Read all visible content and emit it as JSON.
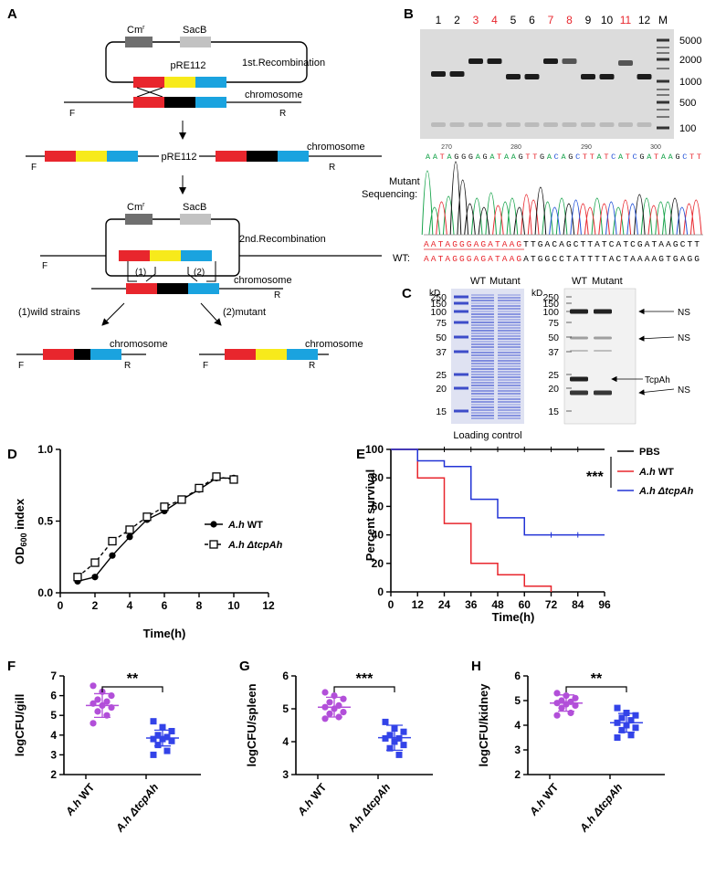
{
  "colors": {
    "red": "#e8262d",
    "yellow": "#f7ea1b",
    "black": "#000000",
    "blue": "#1aa3df",
    "cm_gray": "#6f6f6f",
    "sacb_gray": "#c2c2c2",
    "gel_bg": "#dcdcdc",
    "coomassie": "#5a6bd6",
    "wt_red": "#e8262d",
    "mutant_blue": "#2233d6",
    "gill_purple": "#b24fd9",
    "mutant_square_blue": "#3343e8",
    "seq_green": "#16a34a",
    "seq_red": "#e8262d",
    "seq_blue": "#1d4ed8",
    "seq_black": "#111111"
  },
  "panelA": {
    "letter": "A",
    "cm": "Cm",
    "cm_sup": "r",
    "sacb": "SacB",
    "plasmid": "pRE112",
    "rec1": "1st.Recombination",
    "rec2": "2nd.Recombination",
    "chromosome": "chromosome",
    "F": "F",
    "R": "R",
    "site1": "(1)",
    "site2": "(2)",
    "outcome1": "(1)wild strains",
    "outcome2": "(2)mutant"
  },
  "panelB": {
    "letter": "B",
    "lanes": [
      "1",
      "2",
      "3",
      "4",
      "5",
      "6",
      "7",
      "8",
      "9",
      "10",
      "11",
      "12",
      "M"
    ],
    "highlighted_lanes": [
      "3",
      "4",
      "7",
      "8",
      "11"
    ],
    "ladder": [
      "5000",
      "2000",
      "1000",
      "500",
      "100"
    ],
    "positions": [
      "270",
      "280",
      "290",
      "300"
    ],
    "top_sequence": "AATAGGGAGATAAGTTGACAGCTTATCATCGATAAGCTT",
    "seq_label_1": "Mutant",
    "seq_label_2": "Sequencing:",
    "mutant_red": "AATAGGGAGATAAG",
    "mutant_black": "TTGACAGCTTATCATCGATAAGCTT",
    "wt_label": "WT:",
    "wt_red": "AATAGGGAGATAAG",
    "wt_black": "ATGGCCTATTTTACTAAAAGTGAGG"
  },
  "panelC": {
    "letter": "C",
    "kd": "kD",
    "markers": [
      "250",
      "150",
      "100",
      "75",
      "50",
      "37",
      "25",
      "20",
      "15"
    ],
    "wt": "WT",
    "mutant": "Mutant",
    "loading_control": "Loading control",
    "ns": "NS",
    "tcpah": "TcpAh"
  },
  "panelD": {
    "letter": "D",
    "ylabel_main": "OD",
    "ylabel_sub": "600",
    "ylabel_rest": " index",
    "xlabel": "Time(h)",
    "legend_wt_italic": "A.h",
    "legend_wt_rest": " WT",
    "legend_mut_italic": "A.h",
    "legend_mut_rest": " ΔtcpAh",
    "yticks": [
      "0.0",
      "0.5",
      "1.0"
    ],
    "xticks": [
      "0",
      "2",
      "4",
      "6",
      "8",
      "10",
      "12"
    ]
  },
  "panelE": {
    "letter": "E",
    "ylabel": "Percent survival",
    "xlabel": "Time(h)",
    "yticks": [
      "0",
      "20",
      "40",
      "60",
      "80",
      "100"
    ],
    "xticks": [
      "0",
      "12",
      "24",
      "36",
      "48",
      "60",
      "72",
      "84",
      "96"
    ],
    "legend_pbs": "PBS",
    "legend_wt_italic": "A.h",
    "legend_wt_rest": " WT",
    "legend_mut_italic": "A.h ΔtcpAh",
    "sig": "***"
  },
  "chart_data": [
    {
      "type": "line",
      "panel": "D",
      "ylabel": "OD600 index",
      "xlabel": "Time(h)",
      "xlim": [
        0,
        12
      ],
      "ylim": [
        0,
        1.0
      ],
      "series": [
        {
          "name": "A.h WT",
          "x": [
            1,
            2,
            3,
            4,
            5,
            6,
            7,
            8,
            9,
            10
          ],
          "values": [
            0.08,
            0.11,
            0.26,
            0.39,
            0.51,
            0.57,
            0.65,
            0.72,
            0.8,
            0.8
          ]
        },
        {
          "name": "A.h ΔtcpAh",
          "x": [
            1,
            2,
            3,
            4,
            5,
            6,
            7,
            8,
            9,
            10
          ],
          "values": [
            0.11,
            0.21,
            0.36,
            0.44,
            0.53,
            0.6,
            0.65,
            0.73,
            0.81,
            0.79
          ]
        }
      ]
    },
    {
      "type": "line",
      "panel": "E",
      "ylabel": "Percent survival",
      "xlabel": "Time(h)",
      "xlim": [
        0,
        96
      ],
      "ylim": [
        0,
        100
      ],
      "series": [
        {
          "name": "PBS",
          "x": [
            0,
            96
          ],
          "values": [
            100,
            100
          ]
        },
        {
          "name": "A.h WT",
          "x": [
            0,
            12,
            24,
            36,
            48,
            60,
            72
          ],
          "values": [
            100,
            80,
            48,
            20,
            12,
            4,
            0
          ]
        },
        {
          "name": "A.h ΔtcpAh",
          "x": [
            0,
            12,
            24,
            36,
            48,
            60,
            96
          ],
          "values": [
            100,
            92,
            88,
            65,
            52,
            40,
            40
          ]
        }
      ]
    },
    {
      "type": "scatter",
      "panel": "F",
      "ylabel": "logCFU/gill",
      "ylim": [
        2,
        7
      ],
      "yticks": [
        "2",
        "3",
        "4",
        "5",
        "6",
        "7"
      ],
      "categories": [
        "A.h WT",
        "A.h ΔtcpAh"
      ],
      "sig": "**",
      "series": [
        {
          "name": "A.h WT",
          "values": [
            6.5,
            6.2,
            6.0,
            5.8,
            5.7,
            5.6,
            5.5,
            5.4,
            5.2,
            5.0,
            4.6
          ],
          "mean": 5.5,
          "sd": 0.6
        },
        {
          "name": "A.h ΔtcpAh",
          "values": [
            4.7,
            4.4,
            4.2,
            4.0,
            3.9,
            3.8,
            3.8,
            3.7,
            3.5,
            3.2,
            3.0
          ],
          "mean": 3.85,
          "sd": 0.4
        }
      ]
    },
    {
      "type": "scatter",
      "panel": "G",
      "ylabel": "logCFU/spleen",
      "ylim": [
        3,
        6
      ],
      "yticks": [
        "3",
        "4",
        "5",
        "6"
      ],
      "categories": [
        "A.h WT",
        "A.h ΔtcpAh"
      ],
      "sig": "***",
      "series": [
        {
          "name": "A.h WT",
          "values": [
            5.5,
            5.4,
            5.3,
            5.2,
            5.1,
            5.05,
            5.0,
            4.9,
            4.85,
            4.75,
            4.7
          ],
          "mean": 5.05,
          "sd": 0.3
        },
        {
          "name": "A.h ΔtcpAh",
          "values": [
            4.6,
            4.4,
            4.3,
            4.2,
            4.1,
            4.1,
            4.0,
            3.9,
            3.8,
            3.6
          ],
          "mean": 4.12,
          "sd": 0.38
        }
      ]
    },
    {
      "type": "scatter",
      "panel": "H",
      "ylabel": "logCFU/kidney",
      "ylim": [
        2,
        6
      ],
      "yticks": [
        "2",
        "3",
        "4",
        "5",
        "6"
      ],
      "categories": [
        "A.h WT",
        "A.h ΔtcpAh"
      ],
      "sig": "**",
      "series": [
        {
          "name": "A.h WT",
          "values": [
            5.3,
            5.2,
            5.1,
            5.0,
            4.95,
            4.9,
            4.85,
            4.8,
            4.7,
            4.5,
            4.4
          ],
          "mean": 4.9,
          "sd": 0.33
        },
        {
          "name": "A.h ΔtcpAh",
          "values": [
            4.7,
            4.5,
            4.4,
            4.3,
            4.2,
            4.1,
            4.0,
            3.9,
            3.8,
            3.6,
            3.5
          ],
          "mean": 4.1,
          "sd": 0.38
        }
      ]
    }
  ],
  "scatter_labels": {
    "F": "F",
    "G": "G",
    "H": "H",
    "wt_italic": "A.h",
    "wt_rest": " WT",
    "mut_italic": "A.h ΔtcpAh"
  }
}
